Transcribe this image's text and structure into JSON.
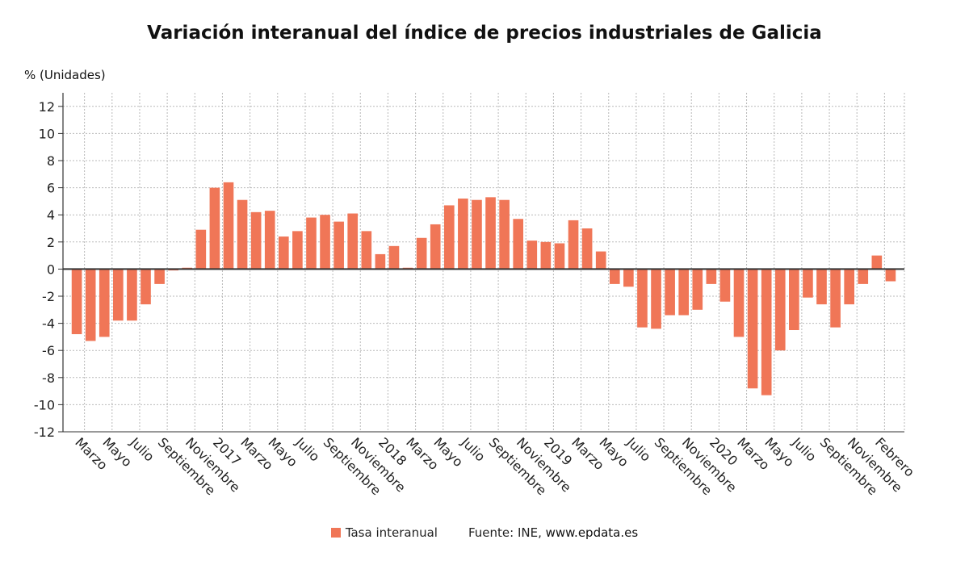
{
  "chart_data": {
    "type": "bar",
    "title": "Variación interanual del índice de precios industriales de Galicia",
    "ylabel": "% (Unidades)",
    "xlabel": "",
    "ylim": [
      -12,
      13
    ],
    "yticks": [
      12,
      10,
      8,
      6,
      4,
      2,
      0,
      -2,
      -4,
      -6,
      -8,
      -10,
      -12
    ],
    "grid": true,
    "legend_position": "bottom",
    "bar_color": "#f07657",
    "x_tick_labels": [
      "Marzo",
      "Mayo",
      "Julio",
      "Septiembre",
      "Noviembre",
      "2017",
      "Marzo",
      "Mayo",
      "Julio",
      "Septiembre",
      "Noviembre",
      "2018",
      "Marzo",
      "Mayo",
      "Julio",
      "Septiembre",
      "Noviembre",
      "2019",
      "Marzo",
      "Mayo",
      "Julio",
      "Septiembre",
      "Noviembre",
      "2020",
      "Marzo",
      "Mayo",
      "Julio",
      "Septiembre",
      "Noviembre",
      "Febrero"
    ],
    "series": [
      {
        "name": "Tasa interanual",
        "values": [
          -4.8,
          -5.3,
          -5.0,
          -3.8,
          -3.8,
          -2.6,
          -1.1,
          -0.1,
          0.1,
          2.9,
          6.0,
          6.4,
          5.1,
          4.2,
          4.3,
          2.4,
          2.8,
          3.8,
          4.0,
          3.5,
          4.1,
          2.8,
          1.1,
          1.7,
          0.1,
          2.3,
          3.3,
          4.7,
          5.2,
          5.1,
          5.3,
          5.1,
          3.7,
          2.1,
          2.0,
          1.9,
          3.6,
          3.0,
          1.3,
          -1.1,
          -1.3,
          -4.3,
          -4.4,
          -3.4,
          -3.4,
          -3.0,
          -1.1,
          -2.4,
          -5.0,
          -8.8,
          -9.3,
          -6.0,
          -4.5,
          -2.1,
          -2.6,
          -4.3,
          -2.6,
          -1.1,
          1.0,
          -0.9
        ]
      }
    ]
  },
  "legend": {
    "label": "Tasa interanual",
    "source_prefix": "Fuente: INE, ",
    "source_url": "www.epdata.es"
  }
}
